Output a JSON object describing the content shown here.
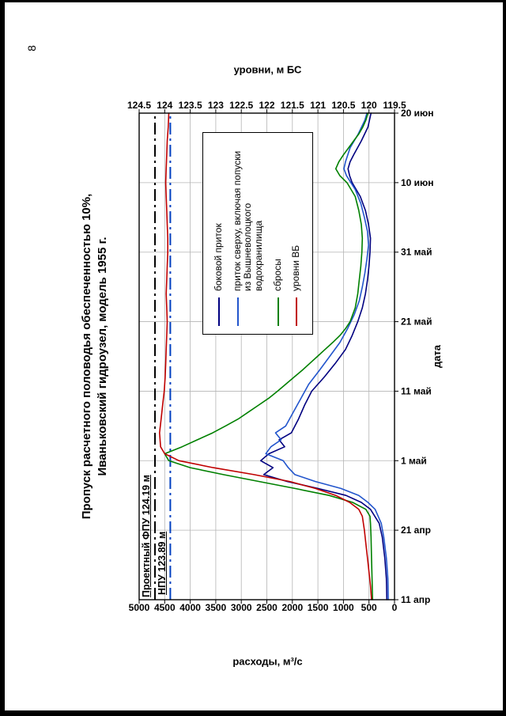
{
  "page": {
    "number": "8"
  },
  "chart_data": {
    "type": "line",
    "title_lines": [
      "Пропуск расчетного половодья обеспеченностью 10%,",
      "Иваньковский гидроузел, модель 1955 г."
    ],
    "xlabel": "дата",
    "ylabel_left": "расходы, м³/с",
    "ylabel_right": "уровни, м БС",
    "x_ticks": {
      "days": [
        0,
        10,
        20,
        30,
        40,
        50,
        60,
        70
      ],
      "labels": [
        "11 апр",
        "21 апр",
        "1 май",
        "11 май",
        "21 май",
        "31 май",
        "10 июн",
        "20 июн"
      ]
    },
    "y_left_axis": {
      "min": 0,
      "max": 5000,
      "step": 500
    },
    "y_right_axis": {
      "min": 119.5,
      "max": 124.5,
      "step": 0.5
    },
    "grid_color": "#b4b4b4",
    "legend_position": "inside-top-right",
    "series": [
      {
        "name": "боковой приток",
        "key": "lateral-inflow",
        "axis": "left",
        "color": "#000080",
        "points": [
          [
            0,
            150
          ],
          [
            3,
            160
          ],
          [
            6,
            190
          ],
          [
            9,
            240
          ],
          [
            11,
            300
          ],
          [
            13,
            470
          ],
          [
            14,
            650
          ],
          [
            15,
            950
          ],
          [
            16,
            1500
          ],
          [
            17,
            2100
          ],
          [
            18,
            2560
          ],
          [
            19,
            2380
          ],
          [
            20,
            2620
          ],
          [
            21,
            2460
          ],
          [
            22,
            2150
          ],
          [
            23,
            2260
          ],
          [
            24,
            2020
          ],
          [
            26,
            1880
          ],
          [
            28,
            1760
          ],
          [
            30,
            1620
          ],
          [
            32,
            1380
          ],
          [
            34,
            1160
          ],
          [
            36,
            960
          ],
          [
            38,
            830
          ],
          [
            40,
            720
          ],
          [
            42,
            630
          ],
          [
            44,
            570
          ],
          [
            46,
            530
          ],
          [
            48,
            500
          ],
          [
            50,
            480
          ],
          [
            52,
            470
          ],
          [
            54,
            510
          ],
          [
            56,
            570
          ],
          [
            58,
            670
          ],
          [
            60,
            830
          ],
          [
            61,
            880
          ],
          [
            62,
            910
          ],
          [
            63,
            870
          ],
          [
            64,
            800
          ],
          [
            66,
            650
          ],
          [
            68,
            520
          ],
          [
            70,
            460
          ]
        ]
      },
      {
        "name": "приток сверху, включая попуски из Вышневолоцкого водохранилища",
        "key": "upstream-inflow",
        "axis": "left",
        "color": "#2255CC",
        "points": [
          [
            0,
            120
          ],
          [
            3,
            130
          ],
          [
            6,
            160
          ],
          [
            9,
            210
          ],
          [
            11,
            260
          ],
          [
            13,
            380
          ],
          [
            14,
            520
          ],
          [
            15,
            700
          ],
          [
            16,
            1050
          ],
          [
            17,
            1550
          ],
          [
            18,
            1950
          ],
          [
            19,
            2080
          ],
          [
            20,
            2180
          ],
          [
            21,
            2520
          ],
          [
            22,
            2420
          ],
          [
            23,
            2220
          ],
          [
            24,
            2330
          ],
          [
            25,
            2130
          ],
          [
            27,
            1980
          ],
          [
            29,
            1830
          ],
          [
            31,
            1680
          ],
          [
            33,
            1470
          ],
          [
            35,
            1270
          ],
          [
            37,
            1070
          ],
          [
            39,
            920
          ],
          [
            41,
            790
          ],
          [
            43,
            690
          ],
          [
            45,
            630
          ],
          [
            47,
            580
          ],
          [
            49,
            540
          ],
          [
            51,
            510
          ],
          [
            53,
            530
          ],
          [
            55,
            590
          ],
          [
            57,
            660
          ],
          [
            59,
            770
          ],
          [
            61,
            940
          ],
          [
            62,
            990
          ],
          [
            63,
            960
          ],
          [
            65,
            870
          ],
          [
            67,
            710
          ],
          [
            69,
            580
          ],
          [
            70,
            540
          ]
        ]
      },
      {
        "name": "сбросы",
        "key": "releases",
        "axis": "left",
        "color": "#008000",
        "points": [
          [
            0,
            430
          ],
          [
            3,
            440
          ],
          [
            6,
            450
          ],
          [
            9,
            460
          ],
          [
            11,
            470
          ],
          [
            12,
            480
          ],
          [
            13,
            560
          ],
          [
            14,
            820
          ],
          [
            15,
            1280
          ],
          [
            16,
            1950
          ],
          [
            17,
            2650
          ],
          [
            18,
            3350
          ],
          [
            19,
            4000
          ],
          [
            20,
            4420
          ],
          [
            21,
            4500
          ],
          [
            22,
            4160
          ],
          [
            23,
            3860
          ],
          [
            24,
            3560
          ],
          [
            25,
            3310
          ],
          [
            26,
            3060
          ],
          [
            27,
            2860
          ],
          [
            28,
            2660
          ],
          [
            29,
            2460
          ],
          [
            30,
            2290
          ],
          [
            31,
            2130
          ],
          [
            32,
            1970
          ],
          [
            33,
            1810
          ],
          [
            34,
            1660
          ],
          [
            35,
            1510
          ],
          [
            36,
            1360
          ],
          [
            37,
            1210
          ],
          [
            38,
            1070
          ],
          [
            39,
            960
          ],
          [
            40,
            870
          ],
          [
            42,
            770
          ],
          [
            44,
            720
          ],
          [
            46,
            690
          ],
          [
            48,
            660
          ],
          [
            50,
            640
          ],
          [
            52,
            630
          ],
          [
            54,
            650
          ],
          [
            56,
            700
          ],
          [
            58,
            770
          ],
          [
            60,
            930
          ],
          [
            61,
            1070
          ],
          [
            62,
            1150
          ],
          [
            63,
            1090
          ],
          [
            64,
            1000
          ],
          [
            65,
            900
          ],
          [
            66,
            800
          ],
          [
            67,
            700
          ],
          [
            68,
            620
          ],
          [
            69,
            560
          ],
          [
            70,
            520
          ]
        ]
      },
      {
        "name": "уровни ВБ",
        "key": "reservoir-level",
        "axis": "right",
        "color": "#C00000",
        "points": [
          [
            0,
            119.95
          ],
          [
            2,
            119.97
          ],
          [
            4,
            120.0
          ],
          [
            6,
            120.03
          ],
          [
            8,
            120.06
          ],
          [
            10,
            120.09
          ],
          [
            12,
            120.13
          ],
          [
            13,
            120.2
          ],
          [
            14,
            120.38
          ],
          [
            15,
            120.65
          ],
          [
            16,
            121.05
          ],
          [
            17,
            121.55
          ],
          [
            18,
            122.25
          ],
          [
            19,
            123.05
          ],
          [
            20,
            123.72
          ],
          [
            21,
            124.0
          ],
          [
            22,
            124.08
          ],
          [
            24,
            124.1
          ],
          [
            26,
            124.07
          ],
          [
            28,
            124.04
          ],
          [
            30,
            124.01
          ],
          [
            32,
            123.99
          ],
          [
            34,
            123.98
          ],
          [
            36,
            123.97
          ],
          [
            38,
            123.96
          ],
          [
            40,
            123.95
          ],
          [
            42,
            123.96
          ],
          [
            44,
            123.97
          ],
          [
            46,
            123.96
          ],
          [
            48,
            123.95
          ],
          [
            50,
            123.94
          ],
          [
            52,
            123.94
          ],
          [
            54,
            123.95
          ],
          [
            56,
            123.96
          ],
          [
            58,
            123.97
          ],
          [
            60,
            123.98
          ],
          [
            62,
            123.97
          ],
          [
            64,
            123.96
          ],
          [
            66,
            123.95
          ],
          [
            68,
            123.93
          ],
          [
            70,
            123.92
          ]
        ]
      }
    ],
    "reference_lines": [
      {
        "label": "Проектный ФПУ 124.19 м",
        "value": 124.19,
        "axis": "right",
        "color": "#000000",
        "style": "dashdot"
      },
      {
        "label": "НПУ 123.89 м",
        "value": 123.89,
        "axis": "right",
        "color": "#0040C0",
        "style": "dashdot"
      }
    ]
  }
}
